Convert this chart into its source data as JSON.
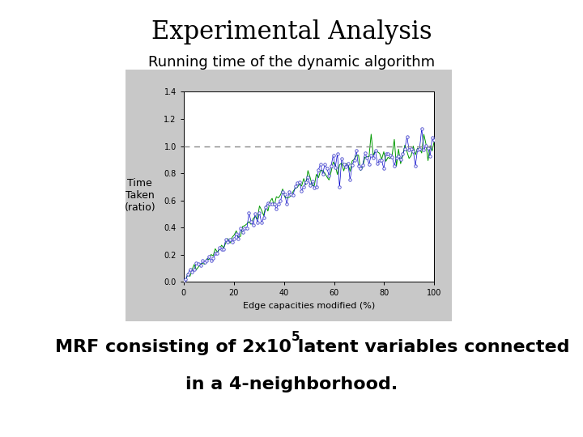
{
  "title": "Experimental Analysis",
  "subtitle": "Running time of the dynamic algorithm",
  "xlabel": "Edge capacities modified (%)",
  "ylabel": "Time\nTaken\n(ratio)",
  "xlim": [
    0,
    100
  ],
  "ylim": [
    0,
    1.4
  ],
  "yticks": [
    0,
    0.2,
    0.4,
    0.6,
    0.8,
    1.0,
    1.2,
    1.4
  ],
  "xticks": [
    0,
    20,
    40,
    60,
    80,
    100
  ],
  "dashed_line_y": 1.0,
  "background_color": "#ffffff",
  "panel_color": "#c8c8c8",
  "plot_bg_color": "#ffffff",
  "title_fontsize": 22,
  "subtitle_fontsize": 13,
  "footer_fontsize": 16,
  "line_color_blue": "#0000cc",
  "line_color_green": "#009900",
  "marker_color_blue": "#4444cc",
  "dashed_color": "#888888",
  "tick_fontsize": 7,
  "axis_label_fontsize": 8,
  "ylabel_fontsize": 9
}
